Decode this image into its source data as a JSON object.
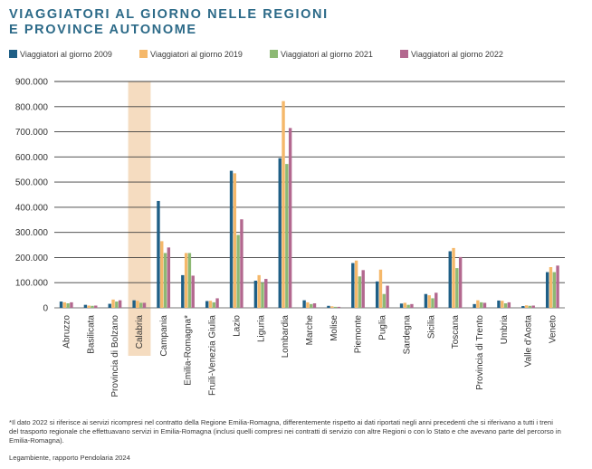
{
  "title_line1": "VIAGGIATORI AL GIORNO NELLE REGIONI",
  "title_line2": "E PROVINCE AUTONOME",
  "footnote": "*Il dato 2022 si riferisce ai servizi ricompresi nel contratto della Regione Emilia-Romagna, differentemente rispetto ai dati riportati negli anni precedenti che si riferivano a tutti i treni del trasporto regionale che effettuavano servizi in Emilia-Romagna (inclusi quelli compresi nei contratti di servizio con altre Regioni o con lo Stato e che avevano parte del percorso in Emilia-Romagna).",
  "source": "Legambiente, rapporto Pendolaria 2024",
  "highlight_category": "Calabria",
  "highlight_color": "#f5dcc0",
  "chart_data": {
    "type": "bar",
    "categories": [
      "Abruzzo",
      "Basilicata",
      "Provincia di Bolzano",
      "Calabria",
      "Campania",
      "Emilia-Romagna*",
      "Fruili-Venezia Giulia",
      "Lazio",
      "Liguria",
      "Lombardia",
      "Marche",
      "Molise",
      "Piemonte",
      "Puglia",
      "Sardegna",
      "Sicilia",
      "Toscana",
      "Provincia di Trento",
      "Umbria",
      "Valle d'Aosta",
      "Veneto"
    ],
    "series": [
      {
        "name": "Viaggiatori al giorno 2009",
        "color": "#1f5f86",
        "values": [
          25000,
          12000,
          16000,
          30000,
          425000,
          130000,
          27000,
          545000,
          108000,
          595000,
          30000,
          8000,
          178000,
          105000,
          17000,
          55000,
          225000,
          15000,
          29000,
          7000,
          142000
        ]
      },
      {
        "name": "Viaggiatori al giorno 2019",
        "color": "#f5b86a",
        "values": [
          22000,
          9000,
          33000,
          28000,
          265000,
          218000,
          28000,
          535000,
          130000,
          822000,
          22000,
          6000,
          188000,
          152000,
          20000,
          50000,
          238000,
          30000,
          28000,
          10000,
          162000
        ]
      },
      {
        "name": "Viaggiatori al giorno 2021",
        "color": "#8db974",
        "values": [
          18000,
          8000,
          25000,
          20000,
          218000,
          218000,
          22000,
          290000,
          100000,
          572000,
          15000,
          4000,
          125000,
          55000,
          12000,
          38000,
          158000,
          22000,
          18000,
          8000,
          142000
        ]
      },
      {
        "name": "Viaggiatori al giorno 2022",
        "color": "#b3688f",
        "values": [
          22000,
          9000,
          30000,
          20000,
          240000,
          128000,
          38000,
          352000,
          115000,
          715000,
          18000,
          4000,
          150000,
          88000,
          15000,
          60000,
          202000,
          20000,
          22000,
          9000,
          168000
        ]
      }
    ],
    "yticks": [
      "0",
      "100.000",
      "200.000",
      "300.000",
      "400.000",
      "500.000",
      "600.000",
      "700.000",
      "800.000",
      "900.000"
    ],
    "ylim": [
      0,
      900000
    ],
    "legend_position": "top",
    "grid": true
  }
}
